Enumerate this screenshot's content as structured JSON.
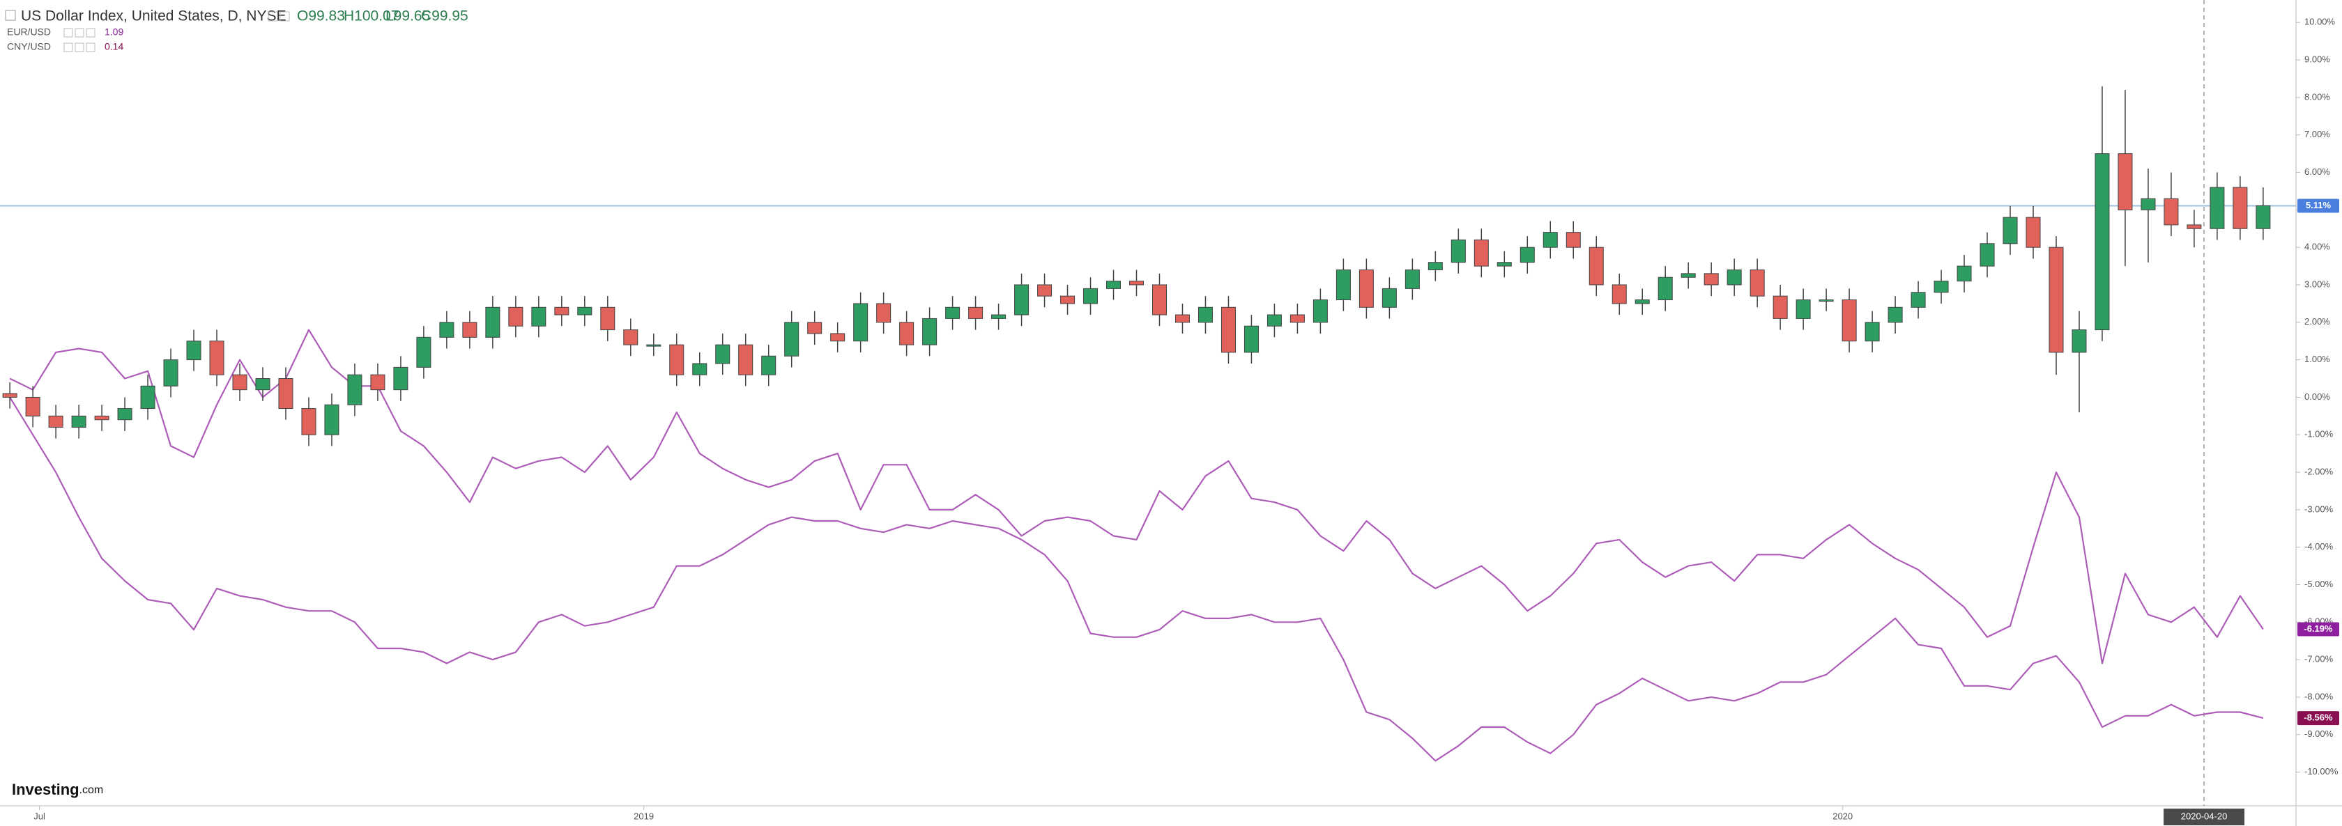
{
  "chart_data": {
    "type": "candlestick",
    "title": "US Dollar Index, United States, D, NYSE",
    "header_values": [
      "O99.83",
      "H100.07",
      "L99.65",
      "C99.95"
    ],
    "x": [
      "2018-06-22",
      "2018-06-29",
      "2018-07-06",
      "2018-07-13",
      "2018-07-20",
      "2018-07-27",
      "2018-08-03",
      "2018-08-10",
      "2018-08-17",
      "2018-08-24",
      "2018-08-31",
      "2018-09-07",
      "2018-09-14",
      "2018-09-21",
      "2018-09-28",
      "2018-10-05",
      "2018-10-12",
      "2018-10-19",
      "2018-10-26",
      "2018-11-02",
      "2018-11-09",
      "2018-11-16",
      "2018-11-23",
      "2018-11-30",
      "2018-12-07",
      "2018-12-14",
      "2018-12-21",
      "2018-12-28",
      "2019-01-04",
      "2019-01-11",
      "2019-01-18",
      "2019-01-25",
      "2019-02-01",
      "2019-02-08",
      "2019-02-15",
      "2019-02-22",
      "2019-03-01",
      "2019-03-08",
      "2019-03-15",
      "2019-03-22",
      "2019-03-29",
      "2019-04-05",
      "2019-04-12",
      "2019-04-19",
      "2019-04-26",
      "2019-05-03",
      "2019-05-10",
      "2019-05-17",
      "2019-05-24",
      "2019-05-31",
      "2019-06-07",
      "2019-06-14",
      "2019-06-21",
      "2019-06-28",
      "2019-07-05",
      "2019-07-12",
      "2019-07-19",
      "2019-07-26",
      "2019-08-02",
      "2019-08-09",
      "2019-08-16",
      "2019-08-23",
      "2019-08-30",
      "2019-09-06",
      "2019-09-13",
      "2019-09-20",
      "2019-09-27",
      "2019-10-04",
      "2019-10-11",
      "2019-10-18",
      "2019-10-25",
      "2019-11-01",
      "2019-11-08",
      "2019-11-15",
      "2019-11-22",
      "2019-11-29",
      "2019-12-06",
      "2019-12-13",
      "2019-12-20",
      "2019-12-27",
      "2020-01-03",
      "2020-01-10",
      "2020-01-17",
      "2020-01-24",
      "2020-01-31",
      "2020-02-07",
      "2020-02-14",
      "2020-02-21",
      "2020-02-28",
      "2020-03-06",
      "2020-03-13",
      "2020-03-20",
      "2020-03-27",
      "2020-04-03",
      "2020-04-10",
      "2020-04-17",
      "2020-04-24",
      "2020-05-01",
      "2020-05-08"
    ],
    "xlim": [
      "2018-06-19",
      "2020-05-18"
    ],
    "xticks": [
      {
        "value": "2018-07-01",
        "label": "Jul"
      },
      {
        "value": "2019-01-01",
        "label": "2019"
      },
      {
        "value": "2020-01-01",
        "label": "2020"
      }
    ],
    "crosshair_x": "2020-04-20",
    "ylim": [
      -10.9,
      10.6
    ],
    "yticks": [
      {
        "value": 10,
        "label": "10.00%"
      },
      {
        "value": 9,
        "label": "9.00%"
      },
      {
        "value": 8,
        "label": "8.00%"
      },
      {
        "value": 7,
        "label": "7.00%"
      },
      {
        "value": 6,
        "label": "6.00%"
      },
      {
        "value": 5,
        "label": "5.00%"
      },
      {
        "value": 4,
        "label": "4.00%"
      },
      {
        "value": 3,
        "label": "3.00%"
      },
      {
        "value": 2,
        "label": "2.00%"
      },
      {
        "value": 1,
        "label": "1.00%"
      },
      {
        "value": 0,
        "label": "0.00%"
      },
      {
        "value": -1,
        "label": "-1.00%"
      },
      {
        "value": -2,
        "label": "-2.00%"
      },
      {
        "value": -3,
        "label": "-3.00%"
      },
      {
        "value": -4,
        "label": "-4.00%"
      },
      {
        "value": -5,
        "label": "-5.00%"
      },
      {
        "value": -6,
        "label": "-6.00%"
      },
      {
        "value": -7,
        "label": "-7.00%"
      },
      {
        "value": -8,
        "label": "-8.00%"
      },
      {
        "value": -9,
        "label": "-9.00%"
      },
      {
        "value": -10,
        "label": "-10.00%"
      }
    ],
    "grid": false,
    "up_color": "#2e9d62",
    "down_color": "#e0625a",
    "open": [
      0.1,
      0,
      -0.5,
      -0.8,
      -0.5,
      -0.6,
      -0.3,
      0.3,
      1.0,
      1.5,
      0.6,
      0.2,
      0.5,
      -0.3,
      -1.0,
      -0.2,
      0.6,
      0.2,
      0.8,
      1.6,
      2.0,
      1.6,
      2.4,
      1.9,
      2.4,
      2.2,
      2.4,
      1.8,
      1.4,
      1.4,
      0.6,
      0.9,
      1.4,
      0.6,
      1.1,
      2.0,
      1.7,
      1.5,
      2.5,
      2.0,
      1.4,
      2.1,
      2.4,
      2.1,
      2.2,
      3.0,
      2.7,
      2.5,
      2.9,
      3.1,
      3.0,
      2.2,
      2.0,
      2.4,
      1.2,
      1.9,
      2.2,
      2.0,
      2.6,
      3.4,
      2.4,
      2.9,
      3.4,
      3.6,
      4.2,
      3.5,
      3.6,
      4.0,
      4.4,
      4.0,
      3.0,
      2.5,
      2.6,
      3.2,
      3.3,
      3.0,
      3.4,
      2.7,
      2.1,
      2.6,
      2.6,
      1.5,
      2.0,
      2.4,
      2.8,
      3.1,
      3.5,
      4.1,
      4.8,
      4.0,
      1.2,
      1.8,
      6.5,
      5.0,
      5.3,
      4.6,
      4.5,
      5.6,
      4.5
    ],
    "high": [
      0.4,
      0.3,
      -0.2,
      -0.2,
      -0.2,
      0.0,
      0.6,
      1.3,
      1.8,
      1.8,
      0.9,
      0.8,
      0.8,
      0.0,
      0.1,
      0.9,
      0.9,
      1.1,
      1.9,
      2.3,
      2.3,
      2.7,
      2.7,
      2.7,
      2.7,
      2.7,
      2.7,
      2.1,
      1.7,
      1.7,
      1.2,
      1.7,
      1.7,
      1.4,
      2.3,
      2.3,
      2.0,
      2.8,
      2.8,
      2.3,
      2.4,
      2.7,
      2.7,
      2.5,
      3.3,
      3.3,
      3.0,
      3.2,
      3.4,
      3.4,
      3.3,
      2.5,
      2.7,
      2.7,
      2.2,
      2.5,
      2.5,
      2.9,
      3.7,
      3.7,
      3.2,
      3.7,
      3.9,
      4.5,
      4.5,
      3.9,
      4.3,
      4.7,
      4.7,
      4.3,
      3.3,
      2.9,
      3.5,
      3.6,
      3.6,
      3.7,
      3.7,
      3.0,
      2.9,
      2.9,
      2.9,
      2.3,
      2.7,
      3.1,
      3.4,
      3.8,
      4.4,
      5.1,
      5.1,
      4.3,
      2.3,
      8.3,
      8.2,
      6.1,
      6.0,
      5.0,
      6.0,
      5.9,
      5.6
    ],
    "low": [
      -0.3,
      -0.8,
      -1.1,
      -1.1,
      -0.9,
      -0.9,
      -0.6,
      0.0,
      0.7,
      0.3,
      -0.1,
      -0.1,
      -0.6,
      -1.3,
      -1.3,
      -0.5,
      -0.1,
      -0.1,
      0.5,
      1.3,
      1.3,
      1.3,
      1.6,
      1.6,
      1.9,
      1.9,
      1.5,
      1.1,
      1.1,
      0.3,
      0.3,
      0.6,
      0.3,
      0.3,
      0.8,
      1.4,
      1.2,
      1.2,
      1.7,
      1.1,
      1.1,
      1.8,
      1.8,
      1.8,
      1.9,
      2.4,
      2.2,
      2.2,
      2.6,
      2.7,
      1.9,
      1.7,
      1.7,
      0.9,
      0.9,
      1.6,
      1.7,
      1.7,
      2.3,
      2.1,
      2.1,
      2.6,
      3.1,
      3.3,
      3.2,
      3.2,
      3.3,
      3.7,
      3.7,
      2.7,
      2.2,
      2.2,
      2.3,
      2.9,
      2.7,
      2.7,
      2.4,
      1.8,
      1.8,
      2.3,
      1.2,
      1.2,
      1.7,
      2.1,
      2.5,
      2.8,
      3.2,
      3.8,
      3.7,
      0.6,
      -0.4,
      1.5,
      3.5,
      3.6,
      4.3,
      4.0,
      4.2,
      4.2,
      4.2
    ],
    "close": [
      0,
      -0.5,
      -0.8,
      -0.5,
      -0.6,
      -0.3,
      0.3,
      1.0,
      1.5,
      0.6,
      0.2,
      0.5,
      -0.3,
      -1.0,
      -0.2,
      0.6,
      0.2,
      0.8,
      1.6,
      2.0,
      1.6,
      2.4,
      1.9,
      2.4,
      2.2,
      2.4,
      1.8,
      1.4,
      1.4,
      0.6,
      0.9,
      1.4,
      0.6,
      1.1,
      2.0,
      1.7,
      1.5,
      2.5,
      2.0,
      1.4,
      2.1,
      2.4,
      2.1,
      2.2,
      3.0,
      2.7,
      2.5,
      2.9,
      3.1,
      3.0,
      2.2,
      2.0,
      2.4,
      1.2,
      1.9,
      2.2,
      2.0,
      2.6,
      3.4,
      2.4,
      2.9,
      3.4,
      3.6,
      4.2,
      3.5,
      3.6,
      4.0,
      4.4,
      4.0,
      3.0,
      2.5,
      2.6,
      3.2,
      3.3,
      3.0,
      3.4,
      2.7,
      2.1,
      2.6,
      2.6,
      1.5,
      2.0,
      2.4,
      2.8,
      3.1,
      3.5,
      4.1,
      4.8,
      4.0,
      1.2,
      1.8,
      6.5,
      5.0,
      5.3,
      4.6,
      4.5,
      5.6,
      4.5,
      5.11
    ],
    "price_line": {
      "value": 5.11,
      "label": "5.11%",
      "color": "#4a7fe0"
    },
    "series": [
      {
        "name": "EUR/USD",
        "type": "line",
        "color": "#ad5db8",
        "tag_color": "#8e1f9e",
        "last_price": "1.09",
        "last_label": "-6.19%",
        "values": [
          0.5,
          0.2,
          1.2,
          1.3,
          1.2,
          0.5,
          0.7,
          -1.3,
          -1.6,
          -0.2,
          1.0,
          0.0,
          0.5,
          1.8,
          0.8,
          0.3,
          0.3,
          -0.9,
          -1.3,
          -2.0,
          -2.8,
          -1.6,
          -1.9,
          -1.7,
          -1.6,
          -2.0,
          -1.3,
          -2.2,
          -1.6,
          -0.4,
          -1.5,
          -1.9,
          -2.2,
          -2.4,
          -2.2,
          -1.7,
          -1.5,
          -3.0,
          -1.8,
          -1.8,
          -3.0,
          -3.0,
          -2.6,
          -3.0,
          -3.7,
          -3.3,
          -3.2,
          -3.3,
          -3.7,
          -3.8,
          -2.5,
          -3.0,
          -2.1,
          -1.7,
          -2.7,
          -2.8,
          -3.0,
          -3.7,
          -4.1,
          -3.3,
          -3.8,
          -4.7,
          -5.1,
          -4.8,
          -4.5,
          -5.0,
          -5.7,
          -5.3,
          -4.7,
          -3.9,
          -3.8,
          -4.4,
          -4.8,
          -4.5,
          -4.4,
          -4.9,
          -4.2,
          -4.2,
          -4.3,
          -3.8,
          -3.4,
          -3.9,
          -4.3,
          -4.6,
          -5.1,
          -5.6,
          -6.4,
          -6.1,
          -4.0,
          -2.0,
          -3.2,
          -7.1,
          -4.7,
          -5.8,
          -6.0,
          -5.6,
          -6.4,
          -5.3,
          -6.19
        ]
      },
      {
        "name": "CNY/USD",
        "type": "line",
        "color": "#ad5db8",
        "tag_color": "#8a0e52",
        "last_price": "0.14",
        "last_label": "-8.56%",
        "values": [
          0.0,
          -1.0,
          -2.0,
          -3.2,
          -4.3,
          -4.9,
          -5.4,
          -5.5,
          -6.2,
          -5.1,
          -5.3,
          -5.4,
          -5.6,
          -5.7,
          -5.7,
          -6.0,
          -6.7,
          -6.7,
          -6.8,
          -7.1,
          -6.8,
          -7.0,
          -6.8,
          -6.0,
          -5.8,
          -6.1,
          -6.0,
          -5.8,
          -5.6,
          -4.5,
          -4.5,
          -4.2,
          -3.8,
          -3.4,
          -3.2,
          -3.3,
          -3.3,
          -3.5,
          -3.6,
          -3.4,
          -3.5,
          -3.3,
          -3.4,
          -3.5,
          -3.8,
          -4.2,
          -4.9,
          -6.3,
          -6.4,
          -6.4,
          -6.2,
          -5.7,
          -5.9,
          -5.9,
          -5.8,
          -6.0,
          -6.0,
          -5.9,
          -7.0,
          -8.4,
          -8.6,
          -9.1,
          -9.7,
          -9.3,
          -8.8,
          -8.8,
          -9.2,
          -9.5,
          -9.0,
          -8.2,
          -7.9,
          -7.5,
          -7.8,
          -8.1,
          -8.0,
          -8.1,
          -7.9,
          -7.6,
          -7.6,
          -7.4,
          -6.9,
          -6.4,
          -5.9,
          -6.6,
          -6.7,
          -7.7,
          -7.7,
          -7.8,
          -7.1,
          -6.9,
          -7.6,
          -8.8,
          -8.5,
          -8.5,
          -8.2,
          -8.5,
          -8.4,
          -8.4,
          -8.56
        ]
      }
    ],
    "watermark": [
      "Investing",
      ".com"
    ]
  }
}
